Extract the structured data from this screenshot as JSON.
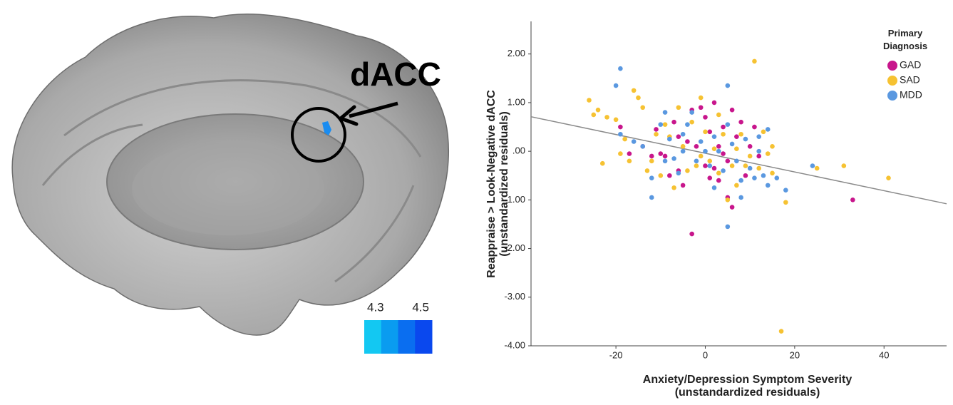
{
  "brain_panel": {
    "label": "dACC",
    "colorbar": {
      "lim": [
        4.25,
        4.55
      ],
      "ticks": [
        4.3,
        4.5
      ],
      "colors": [
        "#13c8f2",
        "#0a9cf0",
        "#0a6ef0",
        "#0a48ee"
      ]
    },
    "cluster_color": "#1a8cf0"
  },
  "chart_data": {
    "type": "scatter",
    "xlabel": [
      "Anxiety/Depression Symptom Severity",
      "(unstandardized residuals)"
    ],
    "ylabel": [
      "Reappraise > Look-Negative dACC",
      "(unstandardized residuals)"
    ],
    "xlim": [
      -39,
      54
    ],
    "ylim": [
      -4,
      2.67
    ],
    "xticks": [
      -20,
      0,
      20,
      40
    ],
    "yticks": [
      {
        "value": 2,
        "label": "2.00"
      },
      {
        "value": 1,
        "label": "1.00"
      },
      {
        "value": 0,
        "label": ".00"
      },
      {
        "value": -1,
        "label": "-1.00"
      },
      {
        "value": -2,
        "label": "-2.00"
      },
      {
        "value": -3,
        "label": "-3.00"
      },
      {
        "value": -4,
        "label": "-4.00"
      }
    ],
    "grid": false,
    "legend": {
      "title": "Primary Diagnosis",
      "corner": "top-right"
    },
    "fit_line": {
      "color": "#8a8a8a",
      "x": [
        -39,
        54
      ],
      "y": [
        0.71,
        -1.08
      ]
    },
    "series": [
      {
        "name": "GAD",
        "color": "#c8168c",
        "x": [
          -19,
          -17,
          -14,
          -12,
          -11,
          -9,
          -8,
          -7,
          -6,
          -5,
          -3,
          -2,
          -1,
          0,
          0,
          1,
          2,
          3,
          3,
          4,
          5,
          5,
          6,
          7,
          8,
          9,
          10,
          11,
          12,
          -3,
          33,
          -10,
          -4,
          2,
          6,
          -6,
          1,
          4
        ],
        "values": [
          0.5,
          -0.05,
          0.1,
          -0.1,
          0.45,
          -0.1,
          -0.5,
          0.6,
          -0.4,
          -0.7,
          0.85,
          0.1,
          0.9,
          0.7,
          -0.3,
          0.4,
          1.0,
          0.1,
          -0.6,
          0.5,
          -0.2,
          -0.95,
          -1.15,
          0.3,
          0.6,
          -0.5,
          0.1,
          0.5,
          -0.1,
          -1.7,
          -1.0,
          -0.05,
          0.2,
          -0.35,
          0.85,
          0.3,
          -0.55,
          -0.05
        ]
      },
      {
        "name": "SAD",
        "color": "#f6c232",
        "x": [
          -26,
          -25,
          -24,
          -22,
          -20,
          -19,
          -18,
          -17,
          -16,
          -15,
          -14,
          -13,
          -12,
          -10,
          -9,
          -8,
          -7,
          -6,
          -5,
          -4,
          -3,
          -2,
          -1,
          0,
          1,
          2,
          3,
          4,
          5,
          6,
          7,
          8,
          9,
          10,
          11,
          12,
          13,
          14,
          15,
          17,
          18,
          25,
          31,
          41,
          -23,
          -11,
          7,
          3,
          -1,
          15
        ],
        "values": [
          1.05,
          0.75,
          0.85,
          0.7,
          0.65,
          -0.05,
          0.25,
          -0.2,
          1.25,
          1.1,
          0.9,
          -0.4,
          -0.2,
          -0.5,
          0.55,
          0.3,
          -0.75,
          0.9,
          0.1,
          -0.4,
          0.6,
          -0.3,
          1.1,
          0.4,
          -0.2,
          0.05,
          -0.45,
          0.35,
          -1.0,
          -0.3,
          0.05,
          0.35,
          -0.3,
          -0.1,
          1.85,
          -0.35,
          0.4,
          -0.05,
          -0.45,
          -3.7,
          -1.05,
          -0.35,
          -0.3,
          -0.55,
          -0.25,
          0.35,
          -0.7,
          0.75,
          -0.1,
          0.1
        ]
      },
      {
        "name": "MDD",
        "color": "#5a98e0",
        "x": [
          -19,
          -19,
          -16,
          -14,
          -12,
          -12,
          -10,
          -9,
          -8,
          -7,
          -6,
          -5,
          -4,
          -3,
          -2,
          -1,
          0,
          1,
          2,
          3,
          4,
          5,
          5,
          6,
          7,
          8,
          9,
          10,
          11,
          12,
          13,
          14,
          16,
          18,
          24,
          -20,
          -9,
          2,
          5,
          12,
          -5,
          8,
          14
        ],
        "values": [
          1.7,
          0.35,
          0.2,
          0.1,
          -0.55,
          -0.95,
          0.55,
          -0.2,
          0.25,
          -0.15,
          -0.45,
          0.0,
          0.55,
          0.8,
          -0.2,
          0.2,
          0.0,
          -0.3,
          0.3,
          0.0,
          -0.4,
          0.55,
          1.35,
          0.15,
          -0.2,
          -0.6,
          0.25,
          -0.35,
          -0.55,
          0.3,
          -0.5,
          -0.7,
          -0.55,
          -0.8,
          -0.3,
          1.35,
          0.8,
          -0.75,
          -1.55,
          0.0,
          0.35,
          -0.95,
          0.45
        ]
      }
    ]
  }
}
